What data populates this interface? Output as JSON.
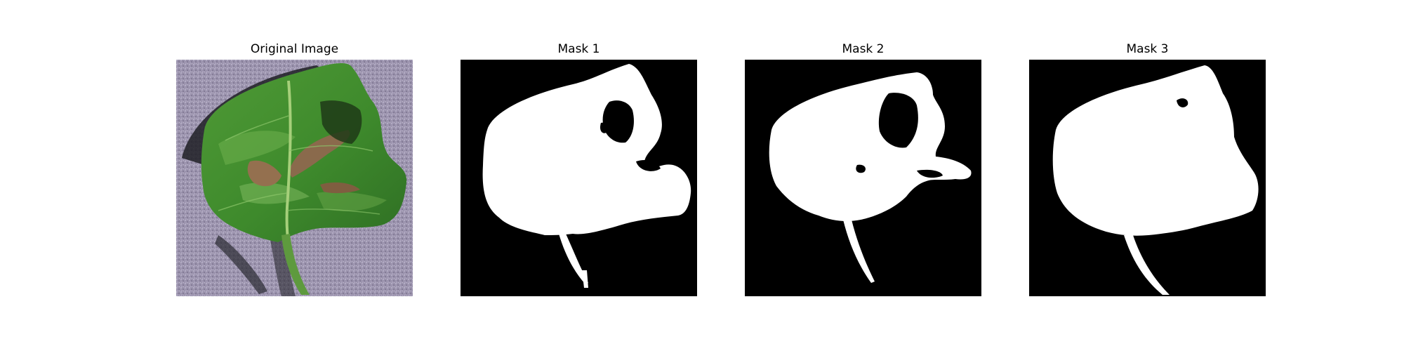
{
  "panels": [
    {
      "title": "Original Image",
      "kind": "photo"
    },
    {
      "title": "Mask 1",
      "kind": "mask"
    },
    {
      "title": "Mask 2",
      "kind": "mask"
    },
    {
      "title": "Mask 3",
      "kind": "mask"
    }
  ],
  "colors": {
    "background": "#ffffff",
    "mask_background": "#000000",
    "mask_foreground": "#ffffff",
    "paper_surface": "#9b93ad",
    "leaf_green": "#3f8a2f",
    "lesion_brown": "#8a6a4c"
  }
}
